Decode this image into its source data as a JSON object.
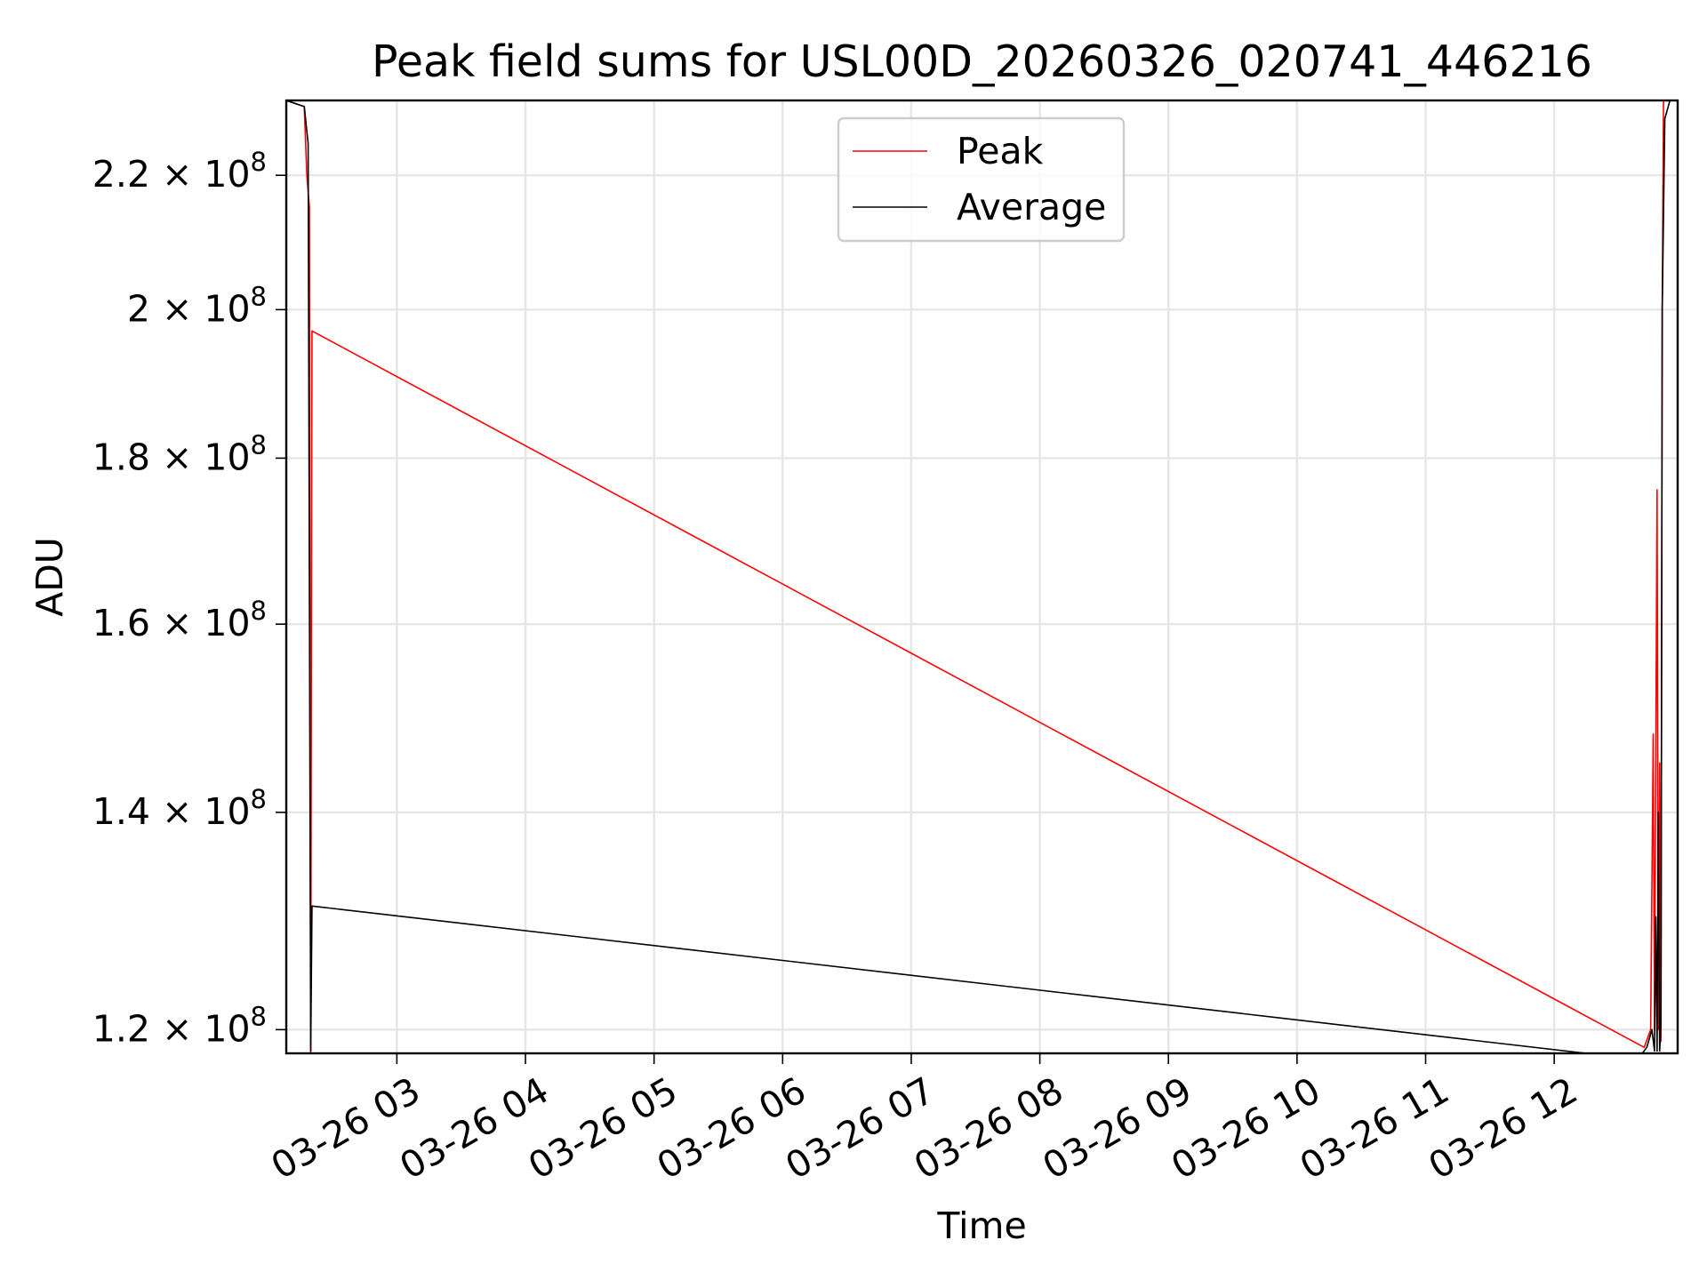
{
  "chart_data": {
    "type": "line",
    "title": "Peak field sums for USL00D_20260326_020741_446216",
    "xlabel": "Time",
    "ylabel": "ADU",
    "xlim": [
      2.14,
      12.96
    ],
    "ylim": [
      118000000,
      232000000
    ],
    "y_scale": "log",
    "grid": true,
    "legend_location": "upper center",
    "x_ticks": [
      {
        "value": 3,
        "label": "03-26 03"
      },
      {
        "value": 4,
        "label": "03-26 04"
      },
      {
        "value": 5,
        "label": "03-26 05"
      },
      {
        "value": 6,
        "label": "03-26 06"
      },
      {
        "value": 7,
        "label": "03-26 07"
      },
      {
        "value": 8,
        "label": "03-26 08"
      },
      {
        "value": 9,
        "label": "03-26 09"
      },
      {
        "value": 10,
        "label": "03-26 10"
      },
      {
        "value": 11,
        "label": "03-26 11"
      },
      {
        "value": 12,
        "label": "03-26 12"
      }
    ],
    "y_ticks": [
      {
        "value": 120000000,
        "mantissa": "1.2",
        "base": "10",
        "exponent": "8"
      },
      {
        "value": 140000000,
        "mantissa": "1.4",
        "base": "10",
        "exponent": "8"
      },
      {
        "value": 160000000,
        "mantissa": "1.6",
        "base": "10",
        "exponent": "8"
      },
      {
        "value": 180000000,
        "mantissa": "1.8",
        "base": "10",
        "exponent": "8"
      },
      {
        "value": 200000000,
        "mantissa": "2",
        "base": "10",
        "exponent": "8"
      },
      {
        "value": 220000000,
        "mantissa": "2.2",
        "base": "10",
        "exponent": "8"
      }
    ],
    "series": [
      {
        "name": "Peak",
        "color": "#ff0000",
        "x": [
          2.14,
          2.28,
          2.3,
          2.32,
          2.33,
          2.34,
          12.7,
          12.75,
          12.77,
          12.78,
          12.8,
          12.81,
          12.82,
          12.83,
          12.84,
          12.85,
          12.86,
          12.87,
          12.9,
          12.96
        ],
        "y": [
          232000000,
          231000000,
          220000000,
          215000000,
          118000000,
          197000000,
          118500000,
          120000000,
          148000000,
          120000000,
          176000000,
          120000000,
          145000000,
          119000000,
          200000000,
          232000000,
          232000000,
          232000000,
          232000000,
          232000000
        ]
      },
      {
        "name": "Average",
        "color": "#000000",
        "x": [
          2.14,
          2.28,
          2.31,
          2.33,
          2.34,
          12.65,
          12.72,
          12.76,
          12.78,
          12.79,
          12.8,
          12.81,
          12.82,
          12.83,
          12.84,
          12.86,
          12.9,
          12.96
        ],
        "y": [
          232000000,
          231000000,
          225000000,
          118200000,
          131000000,
          117500000,
          118500000,
          120000000,
          118200000,
          130000000,
          118200000,
          140000000,
          118200000,
          120500000,
          200000000,
          229000000,
          232000000,
          232000000
        ]
      }
    ]
  }
}
